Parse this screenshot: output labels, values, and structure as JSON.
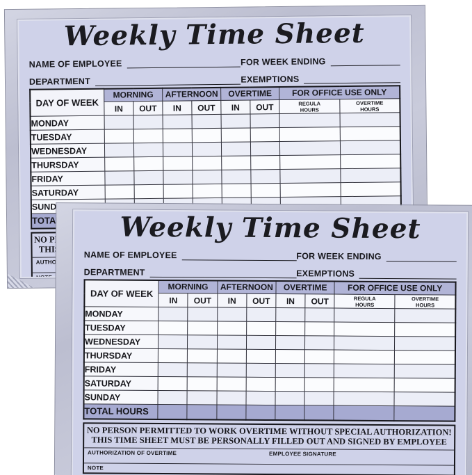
{
  "product": {
    "description": "Two stacked weekly time sheet note pads on a white background"
  },
  "form": {
    "title": "Weekly Time Sheet",
    "fields": {
      "name_of_employee": "NAME OF EMPLOYEE",
      "for_week_ending": "FOR WEEK ENDING",
      "department": "DEPARTMENT",
      "exemptions": "EXEMPTIONS"
    },
    "table": {
      "day_of_week_header": "DAY OF WEEK",
      "group_headers": [
        "MORNING",
        "AFTERNOON",
        "OVERTIME",
        "FOR OFFICE USE ONLY"
      ],
      "in_label": "IN",
      "out_label": "OUT",
      "office_columns": [
        "REGULA HOURS",
        "OVERTIME HOURS"
      ],
      "days": [
        "MONDAY",
        "TUESDAY",
        "WEDNESDAY",
        "THURSDAY",
        "FRIDAY",
        "SATURDAY",
        "SUNDAY"
      ],
      "total_label": "TOTAL HOURS"
    },
    "footer": {
      "notice_line1": "NO PERSON PERMITTED TO WORK OVERTIME WITHOUT SPECIAL AUTHORIZATION!",
      "notice_line2": "THIS TIME SHEET MUST BE PERSONALLY FILLED OUT AND SIGNED BY EMPLOYEE",
      "authorization_label": "AUTHORIZATION OF OVERTIME",
      "signature_label": "EMPLOYEE SIGNATURE",
      "note_label": "NOTE"
    }
  },
  "colors": {
    "sheet_face": "#cfd2e9",
    "header_band": "#b1b4d7",
    "total_row": "#a6aad1",
    "row_stripe": "#eceef7",
    "row_plain": "#fbfcfe",
    "pad_edge": "#bdbfd1"
  }
}
